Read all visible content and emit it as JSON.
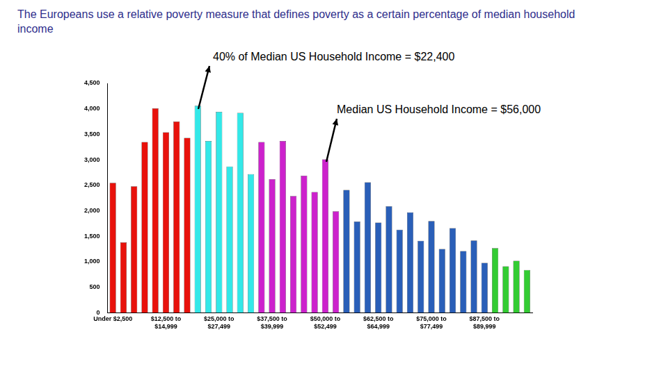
{
  "chart_data": {
    "type": "bar",
    "title": "The Europeans use a relative poverty measure that defines poverty as a certain percentage of median household income",
    "annotations": [
      "40% of Median US Household Income = $22,400",
      "Median US Household Income = $56,000"
    ],
    "categories": [
      "Under $2,500",
      null,
      null,
      null,
      null,
      "$12,500 to $14,999",
      null,
      null,
      null,
      null,
      "$25,000 to $27,499",
      null,
      null,
      null,
      null,
      "$37,500 to $39,999",
      null,
      null,
      null,
      null,
      "$50,000 to $52,499",
      null,
      null,
      null,
      null,
      "$62,500 to $64,999",
      null,
      null,
      null,
      null,
      "$75,000 to $77,499",
      null,
      null,
      null,
      null,
      "$87,500 to $89,999",
      null,
      null,
      null,
      null
    ],
    "values": [
      2550,
      1380,
      2480,
      3350,
      4010,
      3540,
      3750,
      3430,
      4060,
      3370,
      3940,
      2870,
      3920,
      2720,
      3350,
      2620,
      3370,
      2290,
      2690,
      2370,
      3010,
      1990,
      2410,
      1790,
      2560,
      1770,
      2090,
      1630,
      1970,
      1410,
      1800,
      1250,
      1660,
      1210,
      1420,
      980,
      1270,
      910,
      1020,
      840
    ],
    "colors": [
      "#e8120c",
      "#e8120c",
      "#e8120c",
      "#e8120c",
      "#e8120c",
      "#e8120c",
      "#e8120c",
      "#e8120c",
      "#33e8e8",
      "#33e8e8",
      "#33e8e8",
      "#33e8e8",
      "#33e8e8",
      "#33e8e8",
      "#cc22cc",
      "#cc22cc",
      "#cc22cc",
      "#cc22cc",
      "#cc22cc",
      "#cc22cc",
      "#cc22cc",
      "#cc22cc",
      "#2a5fb8",
      "#2a5fb8",
      "#2a5fb8",
      "#2a5fb8",
      "#2a5fb8",
      "#2a5fb8",
      "#2a5fb8",
      "#2a5fb8",
      "#2a5fb8",
      "#2a5fb8",
      "#2a5fb8",
      "#2a5fb8",
      "#2a5fb8",
      "#2a5fb8",
      "#33cc33",
      "#33cc33",
      "#33cc33",
      "#33cc33"
    ],
    "ylim": [
      0,
      4500
    ],
    "yticks": [
      0,
      500,
      {
        "value": 1000,
        "label": "1,000"
      },
      {
        "value": 1500,
        "label": "1,500"
      },
      {
        "value": 2000,
        "label": "2,000"
      },
      {
        "value": 2500,
        "label": "2,500"
      },
      {
        "value": 3000,
        "label": "3,000"
      },
      {
        "value": 3500,
        "label": "3,500"
      },
      {
        "value": 4000,
        "label": "4,000"
      },
      {
        "value": 4500,
        "label": "4,500"
      }
    ],
    "grid": false
  }
}
